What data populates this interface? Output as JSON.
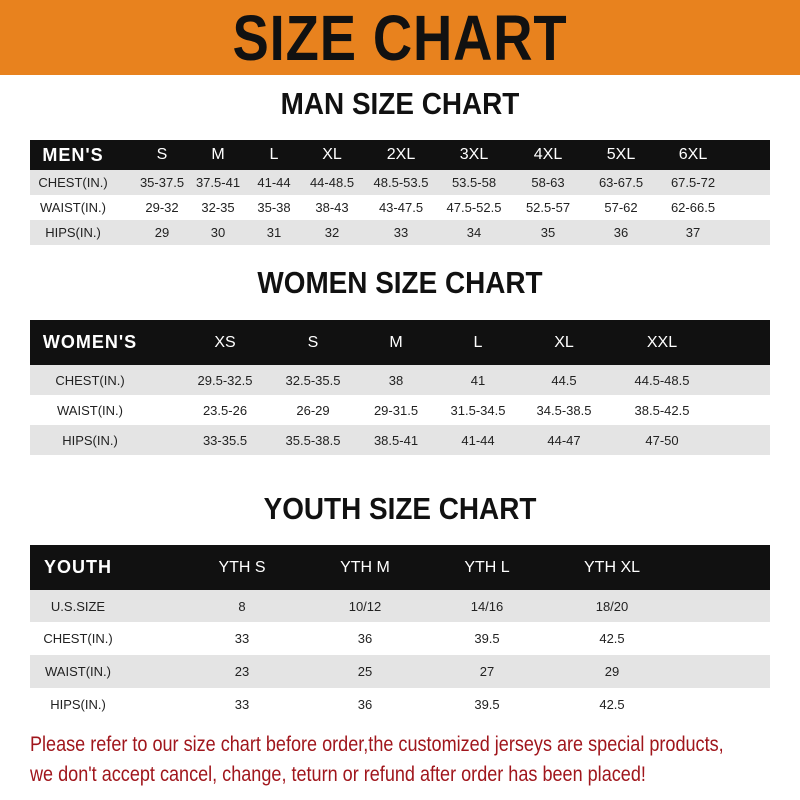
{
  "banner": {
    "title": "SIZE CHART",
    "color": "#e8821e"
  },
  "men": {
    "title": "MAN SIZE CHART",
    "header": [
      "MEN'S",
      "S",
      "M",
      "L",
      "XL",
      "2XL",
      "3XL",
      "4XL",
      "5XL",
      "6XL"
    ],
    "rows": [
      [
        "CHEST(IN.)",
        "35-37.5",
        "37.5-41",
        "41-44",
        "44-48.5",
        "48.5-53.5",
        "53.5-58",
        "58-63",
        "63-67.5",
        "67.5-72"
      ],
      [
        "WAIST(IN.)",
        "29-32",
        "32-35",
        "35-38",
        "38-43",
        "43-47.5",
        "47.5-52.5",
        "52.5-57",
        "57-62",
        "62-66.5"
      ],
      [
        "HIPS(IN.)",
        "29",
        "30",
        "31",
        "32",
        "33",
        "34",
        "35",
        "36",
        "37"
      ]
    ]
  },
  "women": {
    "title": "WOMEN SIZE CHART",
    "header": [
      "WOMEN'S",
      "XS",
      "S",
      "M",
      "L",
      "XL",
      "XXL"
    ],
    "rows": [
      [
        "CHEST(IN.)",
        "29.5-32.5",
        "32.5-35.5",
        "38",
        "41",
        "44.5",
        "44.5-48.5"
      ],
      [
        "WAIST(IN.)",
        "23.5-26",
        "26-29",
        "29-31.5",
        "31.5-34.5",
        "34.5-38.5",
        "38.5-42.5"
      ],
      [
        "HIPS(IN.)",
        "33-35.5",
        "35.5-38.5",
        "38.5-41",
        "41-44",
        "44-47",
        "47-50"
      ]
    ]
  },
  "youth": {
    "title": "YOUTH SIZE CHART",
    "header": [
      "YOUTH",
      "YTH S",
      "YTH M",
      "YTH L",
      "YTH XL"
    ],
    "rows": [
      [
        "U.S.SIZE",
        "8",
        "10/12",
        "14/16",
        "18/20"
      ],
      [
        "CHEST(IN.)",
        "33",
        "36",
        "39.5",
        "42.5"
      ],
      [
        "WAIST(IN.)",
        "23",
        "25",
        "27",
        "29"
      ],
      [
        "HIPS(IN.)",
        "33",
        "36",
        "39.5",
        "42.5"
      ]
    ]
  },
  "note": {
    "line1": "Please refer to our size chart before order,the customized jerseys are special products,",
    "line2": "we don't accept cancel, change, teturn or refund after order has been placed!",
    "color": "#a0161c"
  }
}
